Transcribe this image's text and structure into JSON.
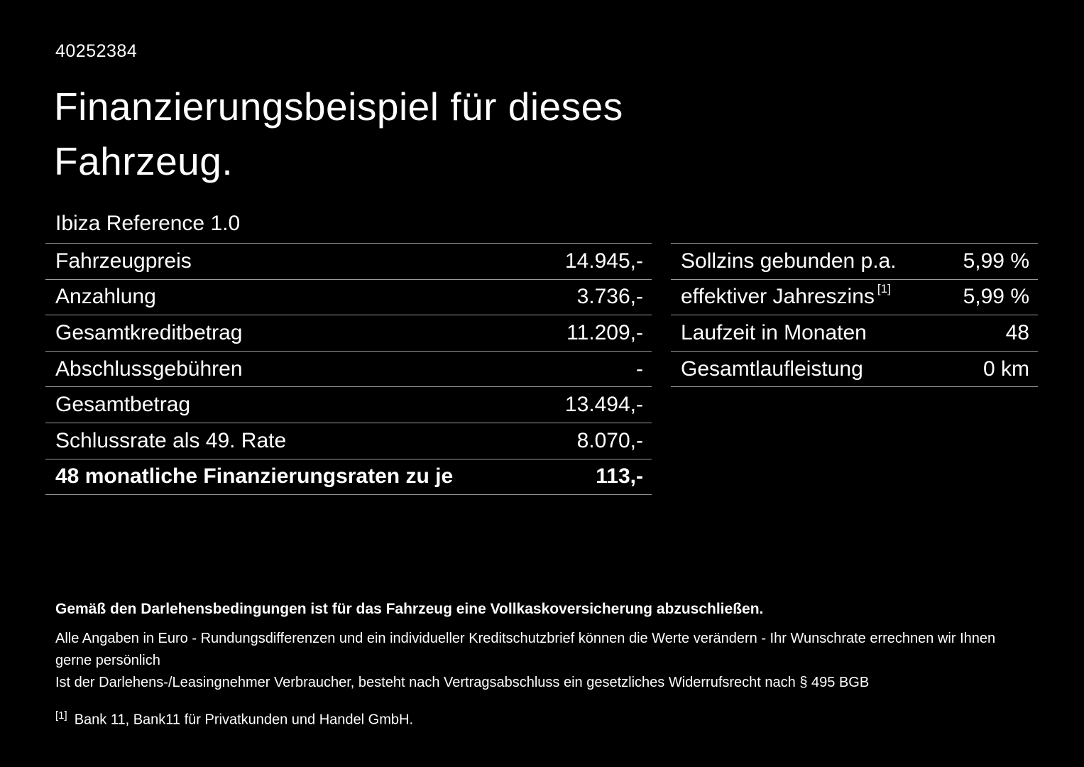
{
  "header": {
    "id_number": "40252384",
    "title_line1": "Finanzierungsbeispiel für dieses",
    "title_line2": "Fahrzeug.",
    "vehicle_name": "Ibiza Reference 1.0"
  },
  "left_table": {
    "rows": [
      {
        "label": "Fahrzeugpreis",
        "value": "14.945,-"
      },
      {
        "label": "Anzahlung",
        "value": "3.736,-"
      },
      {
        "label": "Gesamtkreditbetrag",
        "value": "11.209,-"
      },
      {
        "label": "Abschlussgebühren",
        "value": "-"
      },
      {
        "label": "Gesamtbetrag",
        "value": "13.494,-"
      },
      {
        "label": "Schlussrate als 49. Rate",
        "value": "8.070,-"
      },
      {
        "label": "48 monatliche Finanzierungsraten zu je",
        "value": "113,-"
      }
    ]
  },
  "right_table": {
    "rows": [
      {
        "label": "Sollzins gebunden p.a.",
        "value": "5,99 %"
      },
      {
        "label": "effektiver Jahreszins",
        "sup": "[1]",
        "value": "5,99 %"
      },
      {
        "label": "Laufzeit in Monaten",
        "value": "48"
      },
      {
        "label": "Gesamtlaufleistung",
        "value": "0 km"
      }
    ]
  },
  "footer": {
    "note_bold": "Gemäß den Darlehensbedingungen ist für das Fahrzeug eine Vollkaskoversicherung abzuschließen.",
    "note_line2": "Alle Angaben in Euro - Rundungsdifferenzen und ein individueller Kreditschutzbrief können die Werte verändern - Ihr Wunschrate errechnen wir Ihnen gerne persönlich",
    "note_line3": "Ist der Darlehens-/Leasingnehmer Verbraucher, besteht nach Vertragsabschluss ein gesetzliches Widerrufsrecht nach § 495 BGB",
    "footnote_marker": "[1]",
    "footnote_text": "Bank 11, Bank11 für Privatkunden und Handel GmbH."
  },
  "colors": {
    "background": "#000000",
    "text": "#ffffff",
    "divider": "#9b9b9b"
  }
}
